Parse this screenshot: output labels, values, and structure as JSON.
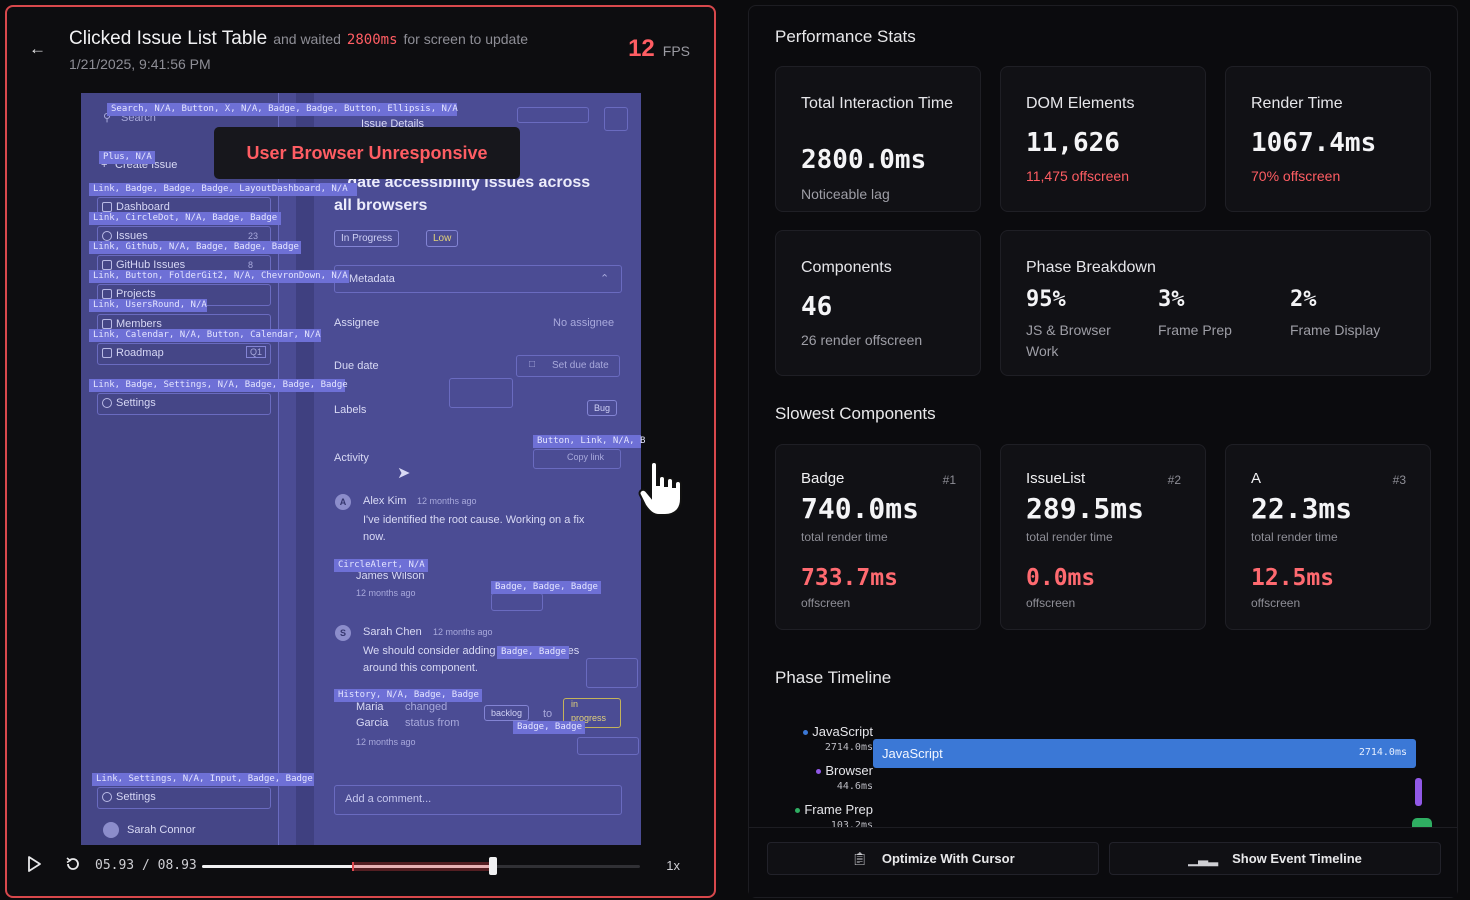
{
  "session": {
    "title": "Clicked Issue List Table",
    "waited_prefix": "and waited",
    "waited_ms": "2800ms",
    "waited_suffix": "for screen to update",
    "timestamp": "1/21/2025, 9:41:56 PM",
    "fps_value": "12",
    "fps_unit": "FPS"
  },
  "replay": {
    "unresponsive_banner": "User Browser Unresponsive",
    "overlay_labels": [
      "Search, N/A, Button, X, N/A, Badge, Badge, Button, Ellipsis, N/A",
      "Plus, N/A",
      "Link, Badge, Badge, Badge, LayoutDashboard, N/A",
      "Link, CircleDot, N/A, Badge, Badge",
      "Link, Github, N/A, Badge, Badge, Badge",
      "Link, Button, FolderGit2, N/A, ChevronDown, N/A",
      "Link, UsersRound, N/A",
      "Link, Calendar, N/A, Button, Calendar, N/A",
      "Link, Badge, Settings, N/A, Badge, Badge, Badge",
      "Button, Link, N/A, B",
      "CircleAlert, N/A",
      "Badge, Badge, Badge",
      "Badge, Badge",
      "History, N/A, Badge, Badge",
      "Badge, Badge",
      "Link, Settings, N/A, Input, Badge, Badge"
    ],
    "sidebar": {
      "search": "Search",
      "create_issue": "Create Issue",
      "items": [
        "Dashboard",
        "Issues",
        "GitHub Issues",
        "Projects",
        "Members",
        "Roadmap"
      ],
      "issues_count": "23",
      "github_count": "8",
      "roadmap_badge": "Q1",
      "settings": "Settings",
      "settings_bottom": "Settings",
      "user": "Sarah Connor"
    },
    "issue": {
      "header": "Issue Details",
      "title_line1": "...date accessibility issues across",
      "title_line2": "all browsers",
      "status": "In Progress",
      "priority": "Low",
      "metadata": "Metadata",
      "assignee_label": "Assignee",
      "assignee_value": "No assignee",
      "due_label": "Due date",
      "due_button": "Set due date",
      "labels_label": "Labels",
      "label_tag": "Bug",
      "activity": "Activity",
      "copy_link": "Copy link",
      "comment1_author": "Alex Kim",
      "comment1_time": "12 months ago",
      "comment1_text1": "I've identified the root cause. Working on a fix",
      "comment1_text2": "now.",
      "comment2_author": "James Wilson",
      "comment2_time": "12 months ago",
      "comment3_author": "Sarah Chen",
      "comment3_time": "12 months ago",
      "comment3_text1": "We should consider adding error boundaries",
      "comment3_text2": "around this component.",
      "hist_author1": "Maria",
      "hist_author2": "Garcia",
      "hist_action1": "changed",
      "hist_action2": "status from",
      "hist_from": "backlog",
      "hist_to_word": "to",
      "hist_to1": "in",
      "hist_to2": "progress",
      "hist_time": "12 months ago",
      "comment_placeholder": "Add a comment..."
    }
  },
  "player": {
    "current": "05.93",
    "separator": "/",
    "total": "08.93",
    "progress_fraction": 0.6641,
    "lag_start_fraction": 0.3433,
    "lag_end_fraction": 0.6641,
    "speed": "1x"
  },
  "stats": {
    "heading": "Performance Stats",
    "cards": {
      "interaction": {
        "label": "Total Interaction Time",
        "value": "2800.0ms",
        "sub": "Noticeable lag"
      },
      "dom": {
        "label": "DOM Elements",
        "value": "11,626",
        "sub": "11,475 offscreen"
      },
      "render": {
        "label": "Render Time",
        "value": "1067.4ms",
        "sub": "70% offscreen"
      },
      "components": {
        "label": "Components",
        "value": "46",
        "sub": "26 render offscreen"
      }
    },
    "phase": {
      "label": "Phase Breakdown",
      "items": [
        {
          "pct": "95%",
          "label": "JS & Browser Work"
        },
        {
          "pct": "3%",
          "label": "Frame Prep"
        },
        {
          "pct": "2%",
          "label": "Frame Display"
        }
      ]
    }
  },
  "slowest": {
    "heading": "Slowest Components",
    "items": [
      {
        "name": "Badge",
        "rank": "#1",
        "total": "740.0ms",
        "total_caption": "total render time",
        "offscreen": "733.7ms",
        "offscreen_caption": "offscreen"
      },
      {
        "name": "IssueList",
        "rank": "#2",
        "total": "289.5ms",
        "total_caption": "total render time",
        "offscreen": "0.0ms",
        "offscreen_caption": "offscreen"
      },
      {
        "name": "A",
        "rank": "#3",
        "total": "22.3ms",
        "total_caption": "total render time",
        "offscreen": "12.5ms",
        "offscreen_caption": "offscreen"
      }
    ]
  },
  "timeline": {
    "heading": "Phase Timeline",
    "rows": [
      {
        "name": "JavaScript",
        "ms": "2714.0ms",
        "color": "#3b78d6"
      },
      {
        "name": "Browser",
        "ms": "44.6ms",
        "color": "#9159e6"
      },
      {
        "name": "Frame Prep",
        "ms": "103.2ms",
        "color": "#2fae62"
      }
    ],
    "bar_label": "JavaScript",
    "bar_value": "2714.0ms"
  },
  "footer": {
    "optimize": "Optimize With Cursor",
    "event_timeline": "Show Event Timeline"
  },
  "colors": {
    "accent_red": "#ff5d63",
    "panel_border": "#d8484c",
    "overlay": "#6e70d6"
  }
}
